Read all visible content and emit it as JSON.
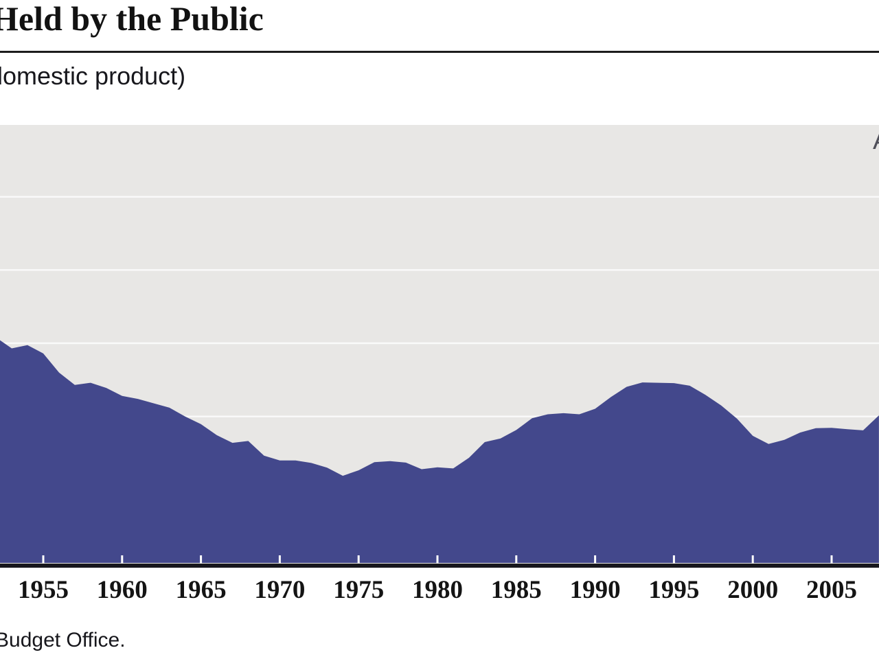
{
  "header": {
    "title": "Held by the Public",
    "subtitle": "domestic product)"
  },
  "source_note": "Budget Office.",
  "chart_data": {
    "type": "area",
    "title": "Held by the Public",
    "subtitle_visible": "domestic product)",
    "actual_label": "Actual",
    "x": [
      1952,
      1953,
      1954,
      1955,
      1956,
      1957,
      1958,
      1959,
      1960,
      1961,
      1962,
      1963,
      1964,
      1965,
      1966,
      1967,
      1968,
      1969,
      1970,
      1971,
      1972,
      1973,
      1974,
      1975,
      1976,
      1977,
      1978,
      1979,
      1980,
      1981,
      1982,
      1983,
      1984,
      1985,
      1986,
      1987,
      1988,
      1989,
      1990,
      1991,
      1992,
      1993,
      1994,
      1995,
      1996,
      1997,
      1998,
      1999,
      2000,
      2001,
      2002,
      2003,
      2004,
      2005,
      2006,
      2007,
      2008
    ],
    "values": [
      61.6,
      58.6,
      59.5,
      57.2,
      52.0,
      48.6,
      49.2,
      47.8,
      45.6,
      44.8,
      43.6,
      42.4,
      40.0,
      37.9,
      34.9,
      32.8,
      33.3,
      29.3,
      28.0,
      28.0,
      27.3,
      26.0,
      23.8,
      25.3,
      27.5,
      27.8,
      27.4,
      25.6,
      26.1,
      25.8,
      28.7,
      33.0,
      34.0,
      36.3,
      39.5,
      40.6,
      40.9,
      40.6,
      42.1,
      45.3,
      48.1,
      49.3,
      49.2,
      49.1,
      48.4,
      45.9,
      43.0,
      39.4,
      34.7,
      32.5,
      33.6,
      35.6,
      36.8,
      36.9,
      36.5,
      36.2,
      40.3
    ],
    "x_tick_labels": [
      "1955",
      "1960",
      "1965",
      "1970",
      "1975",
      "1980",
      "1985",
      "1990",
      "1995",
      "2000",
      "2005"
    ],
    "x_tick_years": [
      1955,
      1960,
      1965,
      1970,
      1975,
      1980,
      1985,
      1990,
      1995,
      2000,
      2005
    ],
    "ylim": [
      0,
      120
    ],
    "gridline_values": [
      40,
      60,
      80,
      100
    ],
    "grid": "horizontal white lines, legend none",
    "colors": {
      "area_fill": "#3D4288",
      "plot_background": "#E8E7E5",
      "gridline": "#FAFAFA",
      "axis_line": "#17171D",
      "tick_mark": "#FFFFFF",
      "text": "#141414"
    }
  }
}
